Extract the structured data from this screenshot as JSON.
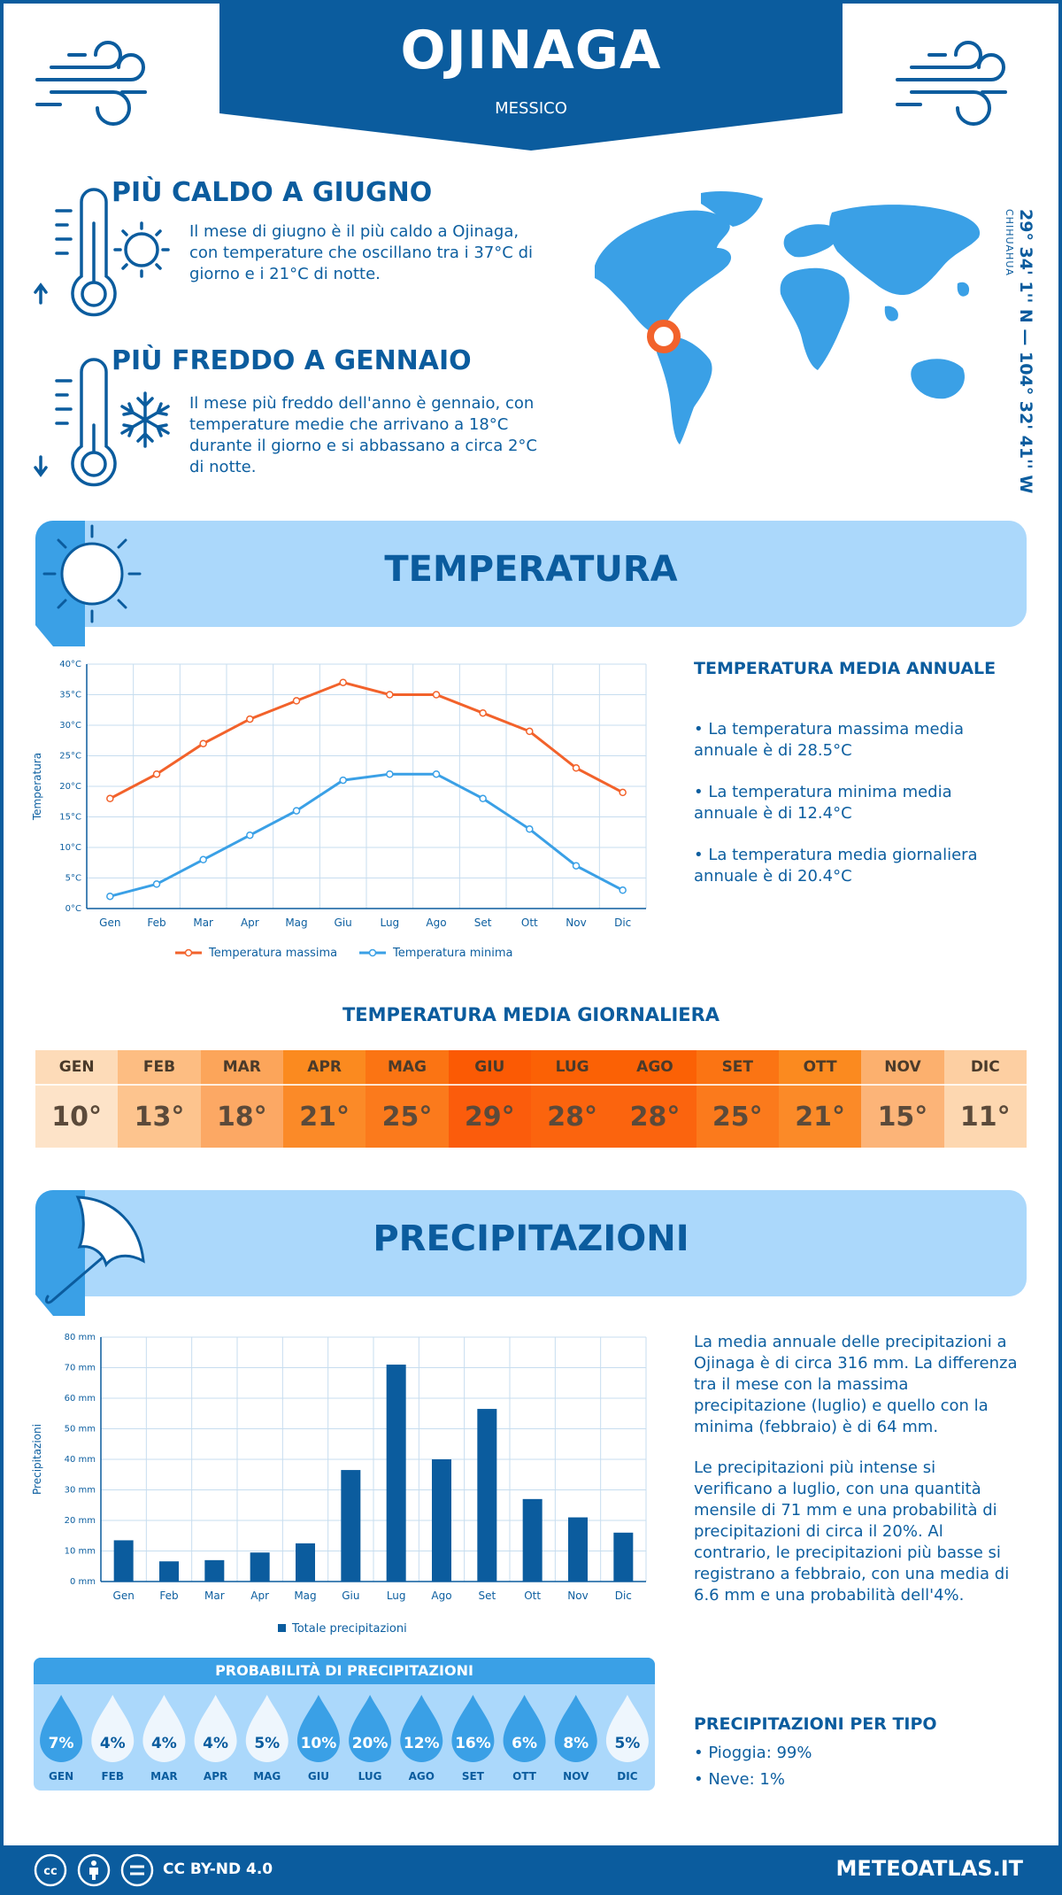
{
  "header": {
    "city": "OJINAGA",
    "country": "MESSICO"
  },
  "coords": {
    "value": "29° 34' 1'' N — 104° 32' 41'' W",
    "region": "CHIHUAHUA"
  },
  "facts": {
    "hot": {
      "title": "PIÙ CALDO A GIUGNO",
      "text": "Il mese di giugno è il più caldo a Ojinaga, con temperature che oscillano tra i 37°C di giorno e i 21°C di notte."
    },
    "cold": {
      "title": "PIÙ FREDDO A GENNAIO",
      "text": "Il mese più freddo dell'anno è gennaio, con temperature medie che arrivano a 18°C durante il giorno e si abbassano a circa 2°C di notte."
    }
  },
  "temperature_section": {
    "title": "TEMPERATURA",
    "annual_title": "TEMPERATURA MEDIA ANNUALE",
    "bullets": [
      "• La temperatura massima media annuale è di 28.5°C",
      "• La temperatura minima media annuale è di 12.4°C",
      "• La temperatura media giornaliera annuale è di 20.4°C"
    ],
    "daily_title": "TEMPERATURA MEDIA GIORNALIERA",
    "daily": [
      {
        "month": "GEN",
        "value": "10°",
        "head_color": "#fddbb8",
        "val_color": "#fde3c8"
      },
      {
        "month": "FEB",
        "value": "13°",
        "head_color": "#fdbd82",
        "val_color": "#fdc48e"
      },
      {
        "month": "MAR",
        "value": "18°",
        "head_color": "#fca55a",
        "val_color": "#fca864"
      },
      {
        "month": "APR",
        "value": "21°",
        "head_color": "#fb8a1f",
        "val_color": "#fb8a28"
      },
      {
        "month": "MAG",
        "value": "25°",
        "head_color": "#fb7413",
        "val_color": "#fb7a1c"
      },
      {
        "month": "GIU",
        "value": "29°",
        "head_color": "#fb5a04",
        "val_color": "#fb5c0c"
      },
      {
        "month": "LUG",
        "value": "28°",
        "head_color": "#fb6105",
        "val_color": "#fb640e"
      },
      {
        "month": "AGO",
        "value": "28°",
        "head_color": "#fb6105",
        "val_color": "#fb640e"
      },
      {
        "month": "SET",
        "value": "25°",
        "head_color": "#fb7413",
        "val_color": "#fb7a1c"
      },
      {
        "month": "OTT",
        "value": "21°",
        "head_color": "#fb8a1f",
        "val_color": "#fb8a28"
      },
      {
        "month": "NOV",
        "value": "15°",
        "head_color": "#fcb06e",
        "val_color": "#fcb478"
      },
      {
        "month": "DIC",
        "value": "11°",
        "head_color": "#fdcfa2",
        "val_color": "#fdd7b0"
      }
    ]
  },
  "temp_chart": {
    "type": "line",
    "categories": [
      "Gen",
      "Feb",
      "Mar",
      "Apr",
      "Mag",
      "Giu",
      "Lug",
      "Ago",
      "Set",
      "Ott",
      "Nov",
      "Dic"
    ],
    "series": [
      {
        "name": "Temperatura massima",
        "values": [
          18,
          22,
          27,
          31,
          34,
          37,
          35,
          35,
          32,
          29,
          23,
          19
        ],
        "color": "#f2622b"
      },
      {
        "name": "Temperatura minima",
        "values": [
          2,
          4,
          8,
          12,
          16,
          21,
          22,
          22,
          18,
          13,
          7,
          3
        ],
        "color": "#3aa0e6"
      }
    ],
    "ylabel": "Temperatura",
    "ylim": [
      0,
      40
    ],
    "yticks": [
      "0°C",
      "5°C",
      "10°C",
      "15°C",
      "20°C",
      "25°C",
      "30°C",
      "35°C",
      "40°C"
    ],
    "grid": true,
    "legend": "bottom"
  },
  "precip_section": {
    "title": "PRECIPITAZIONI",
    "text1": "La media annuale delle precipitazioni a Ojinaga è di circa 316 mm. La differenza tra il mese con la massima precipitazione (luglio) e quello con la minima (febbraio) è di 64 mm.",
    "text2": "Le precipitazioni più intense si verificano a luglio, con una quantità mensile di 71 mm e una probabilità di precipitazioni di circa il 20%. Al contrario, le precipitazioni più basse si registrano a febbraio, con una media di 6.6 mm e una probabilità dell'4%.",
    "prob_title": "PROBABILITÀ DI PRECIPITAZIONI",
    "prob": [
      {
        "month": "GEN",
        "value": "7%",
        "dark": true
      },
      {
        "month": "FEB",
        "value": "4%",
        "dark": false
      },
      {
        "month": "MAR",
        "value": "4%",
        "dark": false
      },
      {
        "month": "APR",
        "value": "4%",
        "dark": false
      },
      {
        "month": "MAG",
        "value": "5%",
        "dark": false
      },
      {
        "month": "GIU",
        "value": "10%",
        "dark": true
      },
      {
        "month": "LUG",
        "value": "20%",
        "dark": true
      },
      {
        "month": "AGO",
        "value": "12%",
        "dark": true
      },
      {
        "month": "SET",
        "value": "16%",
        "dark": true
      },
      {
        "month": "OTT",
        "value": "6%",
        "dark": true
      },
      {
        "month": "NOV",
        "value": "8%",
        "dark": true
      },
      {
        "month": "DIC",
        "value": "5%",
        "dark": false
      }
    ],
    "type_title": "PRECIPITAZIONI PER TIPO",
    "types": [
      "• Pioggia: 99%",
      "• Neve: 1%"
    ]
  },
  "precip_chart": {
    "type": "bar",
    "categories": [
      "Gen",
      "Feb",
      "Mar",
      "Apr",
      "Mag",
      "Giu",
      "Lug",
      "Ago",
      "Set",
      "Ott",
      "Nov",
      "Dic"
    ],
    "series": [
      {
        "name": "Totale precipitazioni",
        "values": [
          13.5,
          6.6,
          7,
          9.5,
          12.5,
          36.5,
          71,
          40,
          56.5,
          27,
          21,
          16
        ],
        "color": "#0b5c9e"
      }
    ],
    "ylabel": "Precipitazioni",
    "ylim": [
      0,
      80
    ],
    "yticks": [
      "0 mm",
      "10 mm",
      "20 mm",
      "30 mm",
      "40 mm",
      "50 mm",
      "60 mm",
      "70 mm",
      "80 mm"
    ],
    "grid": true,
    "legend": "bottom"
  },
  "footer": {
    "license": "CC BY-ND 4.0",
    "site": "METEOATLAS.IT"
  },
  "colors": {
    "primary": "#0b5c9e",
    "accent": "#3aa0e6",
    "band": "#abd8fb",
    "hot": "#f2622b"
  }
}
